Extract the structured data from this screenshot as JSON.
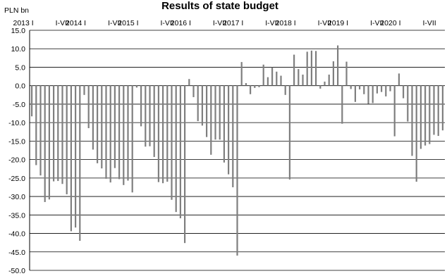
{
  "chart_data": {
    "type": "bar",
    "title": "Results of state budget",
    "unit_label": "PLN bn",
    "ylim": [
      -50,
      15
    ],
    "yticks": [
      "15.0",
      "10.0",
      "5.0",
      "0.0",
      "-5.0",
      "-10.0",
      "-15.0",
      "-20.0",
      "-25.0",
      "-30.0",
      "-35.0",
      "-40.0",
      "-45.0",
      "-50.0"
    ],
    "grid": true,
    "xtick_labels": [
      {
        "index": 0,
        "label": "2013 I"
      },
      {
        "index": 6,
        "label": "I-VII"
      },
      {
        "index": 12,
        "label": "2014 I"
      },
      {
        "index": 18,
        "label": "I-VII"
      },
      {
        "index": 24,
        "label": "2015 I"
      },
      {
        "index": 30,
        "label": "I-VII"
      },
      {
        "index": 36,
        "label": "2016 I"
      },
      {
        "index": 42,
        "label": "I-VII"
      },
      {
        "index": 48,
        "label": "2017 I"
      },
      {
        "index": 54,
        "label": "I-VII"
      },
      {
        "index": 60,
        "label": "2018 I"
      },
      {
        "index": 66,
        "label": "I-VII"
      },
      {
        "index": 72,
        "label": "2019 I"
      },
      {
        "index": 78,
        "label": "I-VII"
      },
      {
        "index": 84,
        "label": "2020 I"
      },
      {
        "index": 90,
        "label": "I-VII"
      }
    ],
    "values": [
      -8.3,
      -21.5,
      -24.3,
      -31.5,
      -30.8,
      -25.9,
      -25.8,
      -26.6,
      -29.4,
      -39.4,
      -38.4,
      -42.0,
      -2.5,
      -11.5,
      -17.3,
      -21.0,
      -22.4,
      -25.2,
      -26.2,
      -22.3,
      -25.3,
      -26.9,
      -25.7,
      -28.9,
      -0.5,
      -11.0,
      -16.5,
      -16.4,
      -19.3,
      -26.1,
      -26.4,
      -26.0,
      -30.9,
      -34.2,
      -35.9,
      -42.6,
      1.8,
      -3.1,
      -9.6,
      -10.8,
      -13.9,
      -18.7,
      -14.6,
      -14.6,
      -20.8,
      -24.0,
      -27.5,
      -46.0,
      6.4,
      0.7,
      -2.3,
      -0.6,
      -0.4,
      5.7,
      2.3,
      5.0,
      3.8,
      2.7,
      -2.5,
      -25.4,
      8.4,
      4.5,
      3.0,
      9.2,
      9.5,
      9.4,
      -0.8,
      1.1,
      3.0,
      6.6,
      10.9,
      -10.3,
      6.5,
      -0.9,
      -4.4,
      -1.0,
      -2.3,
      -4.9,
      -4.7,
      -2.1,
      -1.7,
      -2.9,
      -1.5,
      -13.7,
      3.3,
      -3.4,
      -9.7,
      -19.0,
      -26.0,
      -17.1,
      -16.2,
      -15.8,
      -13.3,
      -13.6,
      -12.1
    ]
  }
}
